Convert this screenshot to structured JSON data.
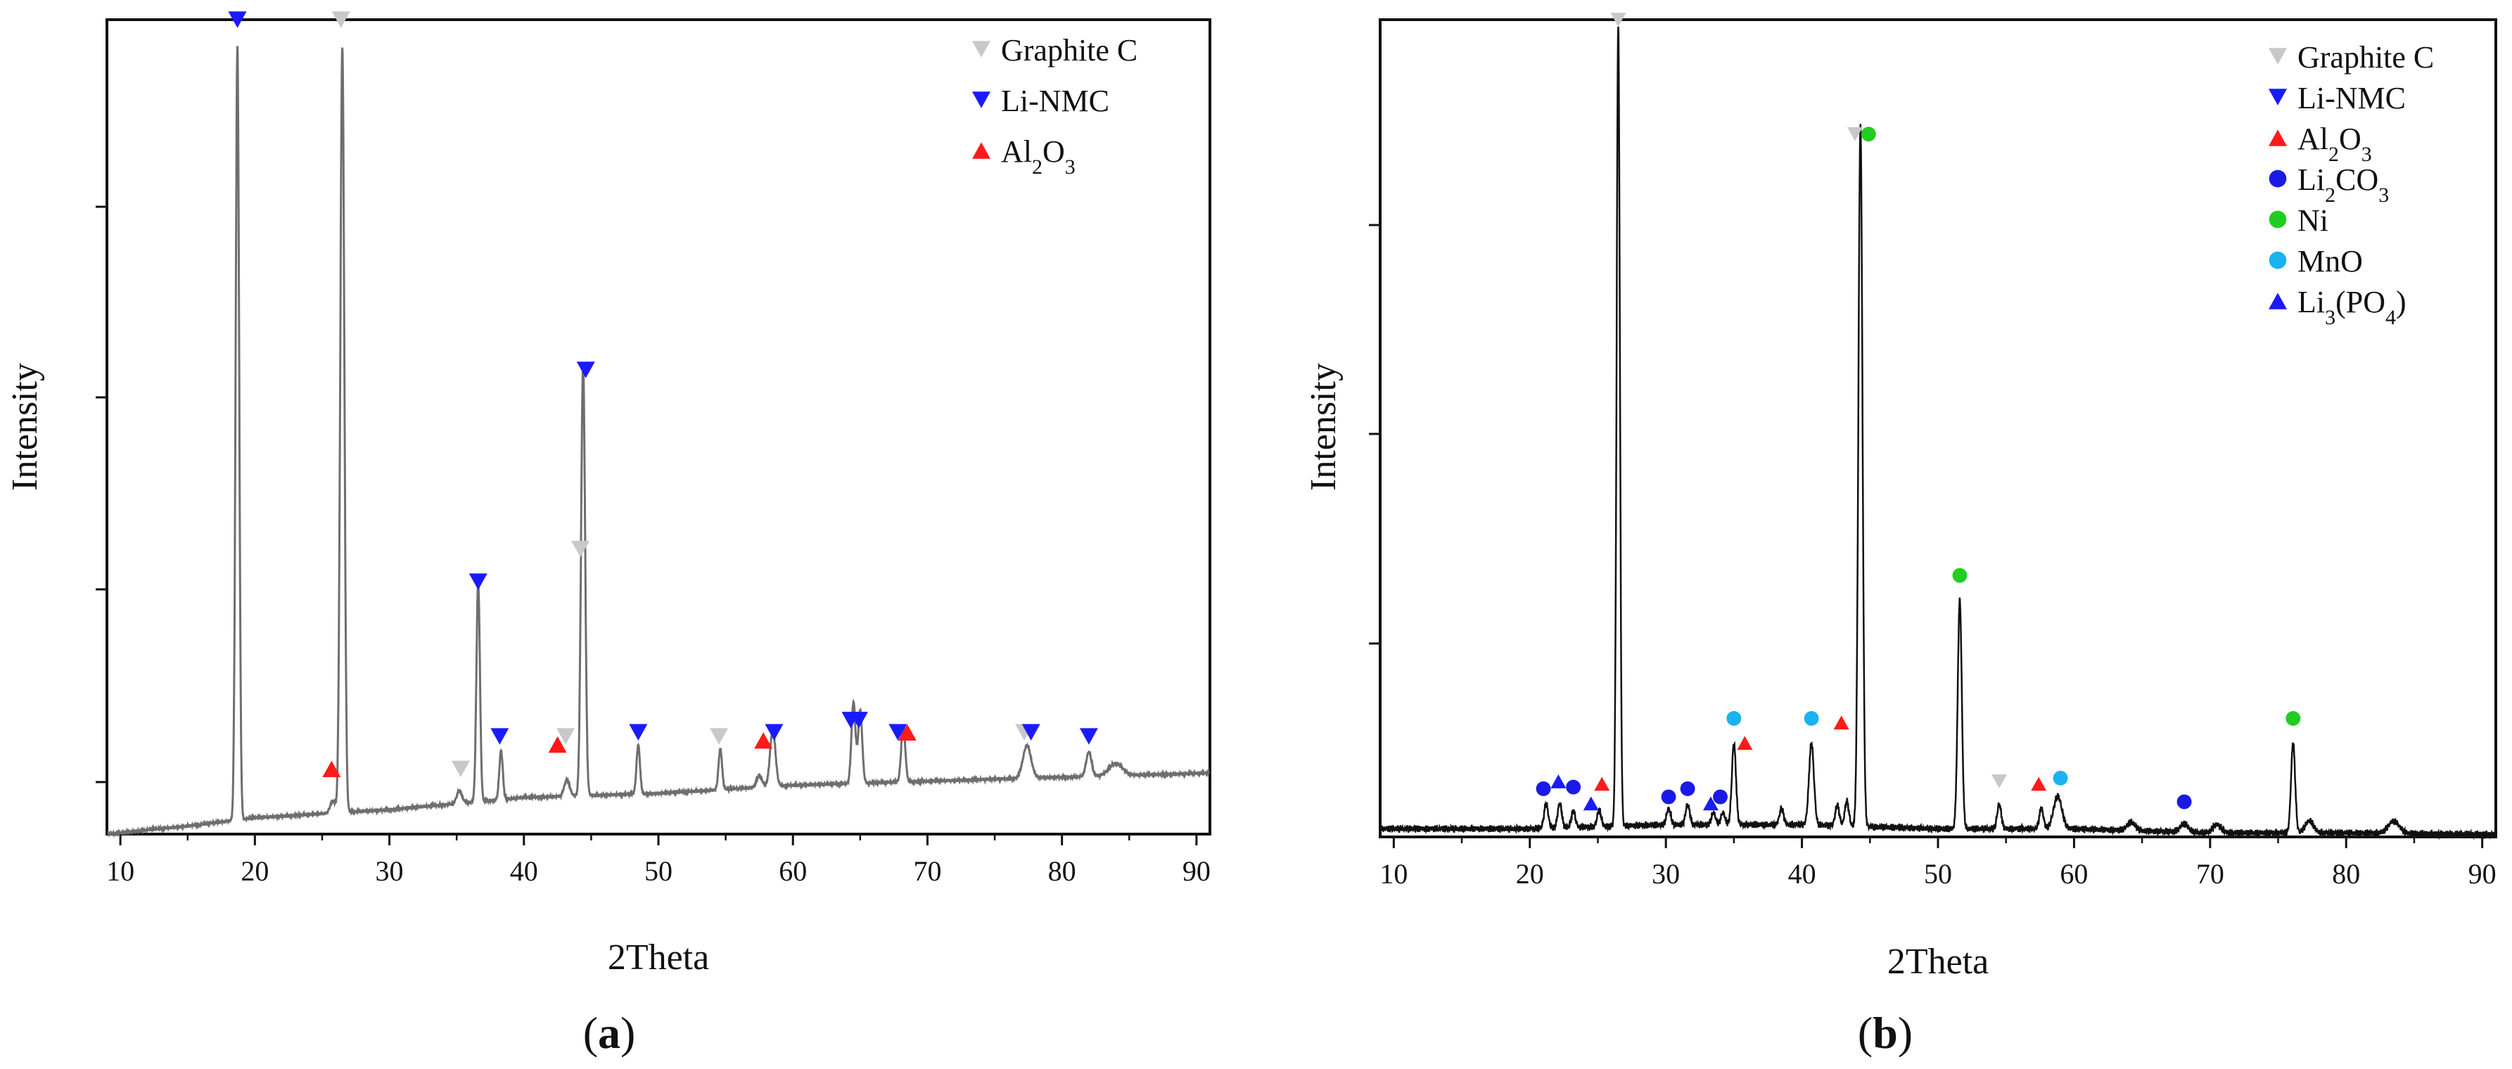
{
  "chart_data": [
    {
      "type": "line",
      "panel_label": "a",
      "xlabel": "2Theta",
      "ylabel": "Intensity",
      "xlim": [
        9,
        91
      ],
      "xticks": [
        10,
        20,
        30,
        40,
        50,
        60,
        70,
        80,
        90
      ],
      "ylim": [
        0,
        100
      ],
      "y_tick_labels_shown": false,
      "grid": false,
      "legend_position": "top-right",
      "line_color": "#6e6e6e",
      "legend": [
        {
          "label": "Graphite C",
          "marker": "down-triangle",
          "color": "#c8c8c8"
        },
        {
          "label": "Li-NMC",
          "marker": "down-triangle",
          "color": "#1a1aff"
        },
        {
          "label": "Al",
          "sub1": "2",
          "mid": "O",
          "sub2": "3",
          "tail": "",
          "marker": "up-triangle",
          "color": "#ff1a1a"
        }
      ],
      "baseline": [
        [
          9,
          0.0
        ],
        [
          15,
          1.0
        ],
        [
          20,
          2.0
        ],
        [
          30,
          3.0
        ],
        [
          40,
          4.5
        ],
        [
          50,
          5.0
        ],
        [
          60,
          6.0
        ],
        [
          70,
          6.5
        ],
        [
          80,
          7.0
        ],
        [
          91,
          7.5
        ]
      ],
      "peaks": [
        [
          18.7,
          95,
          0.13
        ],
        [
          26.5,
          94,
          0.15
        ],
        [
          36.6,
          27,
          0.13
        ],
        [
          38.3,
          6,
          0.13
        ],
        [
          44.4,
          53,
          0.15
        ],
        [
          48.5,
          6,
          0.13
        ],
        [
          54.6,
          5,
          0.13
        ],
        [
          58.5,
          7,
          0.2
        ],
        [
          64.5,
          10,
          0.15
        ],
        [
          65.0,
          9,
          0.15
        ],
        [
          68.2,
          7,
          0.15
        ],
        [
          77.4,
          4,
          0.3
        ],
        [
          82.0,
          3,
          0.2
        ],
        [
          35.2,
          1.5,
          0.2
        ],
        [
          43.2,
          2.0,
          0.2
        ],
        [
          57.5,
          1.5,
          0.2
        ],
        [
          84.0,
          1.5,
          0.5
        ],
        [
          25.8,
          1.5,
          0.2
        ]
      ],
      "markers": [
        {
          "phase": "Li-NMC",
          "x": 18.7,
          "y": 100
        },
        {
          "phase": "Graphite C",
          "x": 26.4,
          "y": 100
        },
        {
          "phase": "Al2O3",
          "x": 25.7,
          "y": 8
        },
        {
          "phase": "Graphite C",
          "x": 35.3,
          "y": 8
        },
        {
          "phase": "Li-NMC",
          "x": 36.6,
          "y": 31
        },
        {
          "phase": "Li-NMC",
          "x": 38.2,
          "y": 12
        },
        {
          "phase": "Al2O3",
          "x": 42.5,
          "y": 11
        },
        {
          "phase": "Graphite C",
          "x": 43.1,
          "y": 12
        },
        {
          "phase": "Li-NMC",
          "x": 44.6,
          "y": 57
        },
        {
          "phase": "Graphite C",
          "x": 44.2,
          "y": 35
        },
        {
          "phase": "Li-NMC",
          "x": 48.5,
          "y": 12.5
        },
        {
          "phase": "Graphite C",
          "x": 54.5,
          "y": 12
        },
        {
          "phase": "Al2O3",
          "x": 57.8,
          "y": 11.5
        },
        {
          "phase": "Li-NMC",
          "x": 58.6,
          "y": 12.5
        },
        {
          "phase": "Li-NMC",
          "x": 64.3,
          "y": 14
        },
        {
          "phase": "Li-NMC",
          "x": 64.9,
          "y": 14
        },
        {
          "phase": "Li-NMC",
          "x": 67.8,
          "y": 12.5
        },
        {
          "phase": "Al2O3",
          "x": 68.5,
          "y": 12.5
        },
        {
          "phase": "Graphite C",
          "x": 77.2,
          "y": 12.5
        },
        {
          "phase": "Li-NMC",
          "x": 77.7,
          "y": 12.5
        },
        {
          "phase": "Li-NMC",
          "x": 82.0,
          "y": 12
        }
      ]
    },
    {
      "type": "line",
      "panel_label": "b",
      "xlabel": "2Theta",
      "ylabel": "Intensity",
      "xlim": [
        9,
        91
      ],
      "xticks": [
        10,
        20,
        30,
        40,
        50,
        60,
        70,
        80,
        90
      ],
      "ylim": [
        0,
        100
      ],
      "y_tick_labels_shown": false,
      "grid": false,
      "legend_position": "top-right",
      "line_color": "#111111",
      "legend": [
        {
          "label": "Graphite C",
          "marker": "down-triangle",
          "color": "#c8c8c8"
        },
        {
          "label": "Li-NMC",
          "marker": "down-triangle",
          "color": "#1a1aff"
        },
        {
          "label": "Al",
          "sub1": "2",
          "mid": "O",
          "sub2": "3",
          "tail": "",
          "marker": "up-triangle",
          "color": "#ff1a1a"
        },
        {
          "label": "Li",
          "sub1": "2",
          "mid": "CO",
          "sub2": "3",
          "tail": "",
          "marker": "circle",
          "color": "#1a1ae6"
        },
        {
          "label": "Ni",
          "marker": "circle",
          "color": "#22cc22"
        },
        {
          "label": "MnO",
          "marker": "circle",
          "color": "#1ab2f0"
        },
        {
          "label": "Li",
          "sub1": "3",
          "mid": "(PO",
          "sub2": "4",
          "tail": ")",
          "marker": "up-triangle",
          "color": "#1a1aff"
        }
      ],
      "baseline": [
        [
          9,
          1.0
        ],
        [
          15,
          1.0
        ],
        [
          20,
          1.0
        ],
        [
          30,
          1.5
        ],
        [
          40,
          1.5
        ],
        [
          50,
          1.0
        ],
        [
          60,
          1.0
        ],
        [
          70,
          0.5
        ],
        [
          80,
          0.5
        ],
        [
          91,
          0.3
        ]
      ],
      "peaks": [
        [
          26.5,
          98,
          0.12
        ],
        [
          44.3,
          86,
          0.15
        ],
        [
          51.6,
          28,
          0.15
        ],
        [
          40.7,
          10,
          0.18
        ],
        [
          35.0,
          10,
          0.15
        ],
        [
          76.1,
          11,
          0.15
        ],
        [
          58.8,
          4,
          0.3
        ],
        [
          54.5,
          3,
          0.15
        ],
        [
          21.2,
          3,
          0.15
        ],
        [
          22.2,
          3,
          0.15
        ],
        [
          23.2,
          2,
          0.15
        ],
        [
          25.1,
          2,
          0.15
        ],
        [
          30.2,
          2,
          0.15
        ],
        [
          31.6,
          2.5,
          0.15
        ],
        [
          33.5,
          1.5,
          0.15
        ],
        [
          34.2,
          1.5,
          0.15
        ],
        [
          38.5,
          2,
          0.15
        ],
        [
          42.6,
          2.5,
          0.15
        ],
        [
          43.3,
          3,
          0.15
        ],
        [
          57.6,
          2.5,
          0.15
        ],
        [
          68.1,
          1,
          0.3
        ],
        [
          70.5,
          1,
          0.3
        ],
        [
          77.3,
          1.5,
          0.3
        ],
        [
          83.5,
          1.5,
          0.4
        ],
        [
          64.2,
          1,
          0.3
        ]
      ],
      "markers": [
        {
          "phase": "Graphite C",
          "x": 26.5,
          "y": 100
        },
        {
          "phase": "Graphite C",
          "x": 43.9,
          "y": 86
        },
        {
          "phase": "Ni",
          "x": 44.9,
          "y": 86
        },
        {
          "phase": "Ni",
          "x": 51.6,
          "y": 32
        },
        {
          "phase": "Ni",
          "x": 76.1,
          "y": 14.5
        },
        {
          "phase": "MnO",
          "x": 35.0,
          "y": 14.5
        },
        {
          "phase": "MnO",
          "x": 40.7,
          "y": 14.5
        },
        {
          "phase": "MnO",
          "x": 59.0,
          "y": 7.2
        },
        {
          "phase": "Al2O3",
          "x": 35.8,
          "y": 11.5
        },
        {
          "phase": "Al2O3",
          "x": 42.9,
          "y": 14
        },
        {
          "phase": "Al2O3",
          "x": 25.3,
          "y": 6.5
        },
        {
          "phase": "Al2O3",
          "x": 57.4,
          "y": 6.5
        },
        {
          "phase": "Graphite C",
          "x": 54.5,
          "y": 6.8
        },
        {
          "phase": "Li2CO3",
          "x": 21.0,
          "y": 5.9
        },
        {
          "phase": "Li2CO3",
          "x": 23.2,
          "y": 6.1
        },
        {
          "phase": "Li2CO3",
          "x": 30.2,
          "y": 4.9
        },
        {
          "phase": "Li2CO3",
          "x": 31.6,
          "y": 5.9
        },
        {
          "phase": "Li2CO3",
          "x": 34.0,
          "y": 4.9
        },
        {
          "phase": "Li2CO3",
          "x": 68.1,
          "y": 4.3
        },
        {
          "phase": "Li3(PO4)",
          "x": 22.1,
          "y": 6.8
        },
        {
          "phase": "Li3(PO4)",
          "x": 24.5,
          "y": 4.1
        },
        {
          "phase": "Li3(PO4)",
          "x": 33.3,
          "y": 4.1
        }
      ]
    }
  ]
}
